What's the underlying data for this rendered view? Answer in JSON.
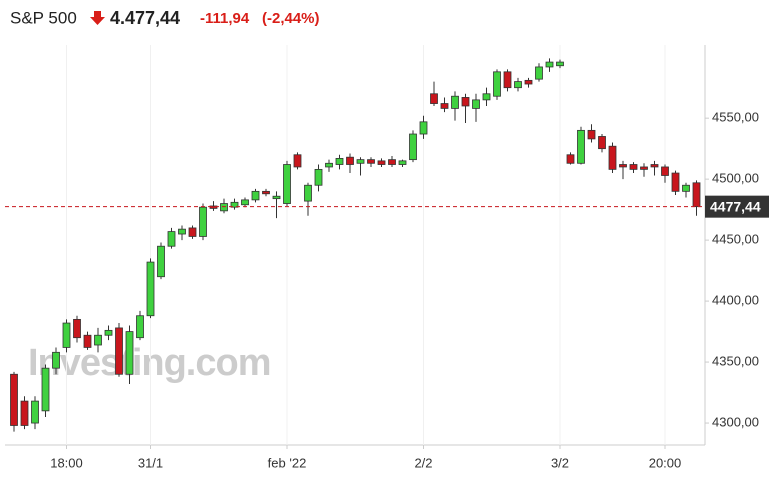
{
  "header": {
    "name": "S&P 500",
    "price": "4.477,44",
    "change": "-111,94",
    "change_pct": "(-2,44%)"
  },
  "chart_data": {
    "type": "candlestick",
    "watermark": "Investing.com",
    "categories": [
      null,
      null,
      null,
      null,
      null,
      "18:00",
      null,
      null,
      null,
      null,
      null,
      null,
      null,
      "31/1",
      null,
      null,
      null,
      null,
      null,
      null,
      null,
      null,
      null,
      null,
      null,
      null,
      "feb '22",
      null,
      null,
      null,
      null,
      null,
      null,
      null,
      null,
      null,
      null,
      null,
      null,
      "2/2",
      null,
      null,
      null,
      null,
      null,
      null,
      null,
      null,
      null,
      null,
      null,
      null,
      "3/2",
      null,
      null,
      null,
      null,
      null,
      null,
      null,
      null,
      null,
      "20:00",
      null,
      null,
      null
    ],
    "open": [
      4340,
      4318,
      4300,
      4310,
      4345,
      4362,
      4385,
      4372,
      4364,
      4372,
      4378,
      4340,
      4370,
      4388,
      4420,
      4445,
      4455,
      4460,
      4453,
      4478,
      4474,
      4477,
      4479,
      4483,
      4490,
      4484,
      4480,
      4520,
      4482,
      4495,
      4510,
      4512,
      4518,
      4513,
      4516,
      4515,
      4516,
      4512,
      4516,
      4537,
      4570,
      4562,
      4558,
      4567,
      4558,
      4565,
      4568,
      4588,
      4575,
      4581,
      4582,
      4592,
      4593,
      4520,
      4513,
      4540,
      4535,
      4527,
      4512,
      4512,
      4510,
      4512,
      4510,
      4505,
      4490,
      4497
    ],
    "high": [
      4342,
      4322,
      4322,
      4348,
      4362,
      4385,
      4388,
      4375,
      4378,
      4380,
      4382,
      4380,
      4392,
      4435,
      4448,
      4460,
      4462,
      4462,
      4480,
      4482,
      4484,
      4484,
      4485,
      4492,
      4492,
      4490,
      4515,
      4522,
      4497,
      4512,
      4516,
      4520,
      4521,
      4518,
      4518,
      4517,
      4519,
      4516,
      4540,
      4552,
      4580,
      4567,
      4572,
      4570,
      4570,
      4575,
      4590,
      4590,
      4583,
      4583,
      4595,
      4599,
      4598,
      4522,
      4543,
      4545,
      4537,
      4530,
      4515,
      4514,
      4513,
      4515,
      4512,
      4507,
      4497,
      4499
    ],
    "low": [
      4293,
      4295,
      4295,
      4305,
      4340,
      4358,
      4366,
      4360,
      4358,
      4368,
      4338,
      4332,
      4368,
      4386,
      4418,
      4443,
      4450,
      4451,
      4450,
      4474,
      4472,
      4475,
      4477,
      4481,
      4486,
      4468,
      4478,
      4508,
      4470,
      4490,
      4506,
      4508,
      4505,
      4503,
      4510,
      4510,
      4510,
      4510,
      4514,
      4533,
      4560,
      4555,
      4548,
      4546,
      4547,
      4560,
      4565,
      4572,
      4572,
      4575,
      4580,
      4588,
      4591,
      4512,
      4512,
      4530,
      4522,
      4505,
      4500,
      4505,
      4502,
      4503,
      4497,
      4487,
      4485,
      4470
    ],
    "close": [
      4298,
      4298,
      4318,
      4345,
      4358,
      4382,
      4370,
      4362,
      4372,
      4376,
      4340,
      4375,
      4388,
      4432,
      4445,
      4457,
      4459,
      4453,
      4477,
      4476,
      4480,
      4481,
      4483,
      4490,
      4488,
      4486,
      4512,
      4510,
      4495,
      4508,
      4513,
      4517,
      4512,
      4516,
      4513,
      4512,
      4512,
      4515,
      4537,
      4547,
      4562,
      4558,
      4568,
      4560,
      4565,
      4570,
      4588,
      4575,
      4580,
      4578,
      4592,
      4596,
      4596,
      4513,
      4540,
      4533,
      4525,
      4508,
      4510,
      4508,
      4508,
      4510,
      4503,
      4490,
      4495,
      4477.44
    ],
    "up_color": "#3fd13f",
    "down_color": "#c8161d",
    "last": {
      "value": 4477.44,
      "label": "4477,44"
    },
    "ylim": [
      4282,
      4610
    ],
    "yticks": [
      {
        "value": 4300,
        "label": "4300,00"
      },
      {
        "value": 4350,
        "label": "4350,00"
      },
      {
        "value": 4400,
        "label": "4400,00"
      },
      {
        "value": 4450,
        "label": "4450,00"
      },
      {
        "value": 4500,
        "label": "4500,00"
      },
      {
        "value": 4550,
        "label": "4550,00"
      }
    ],
    "grid": true
  }
}
